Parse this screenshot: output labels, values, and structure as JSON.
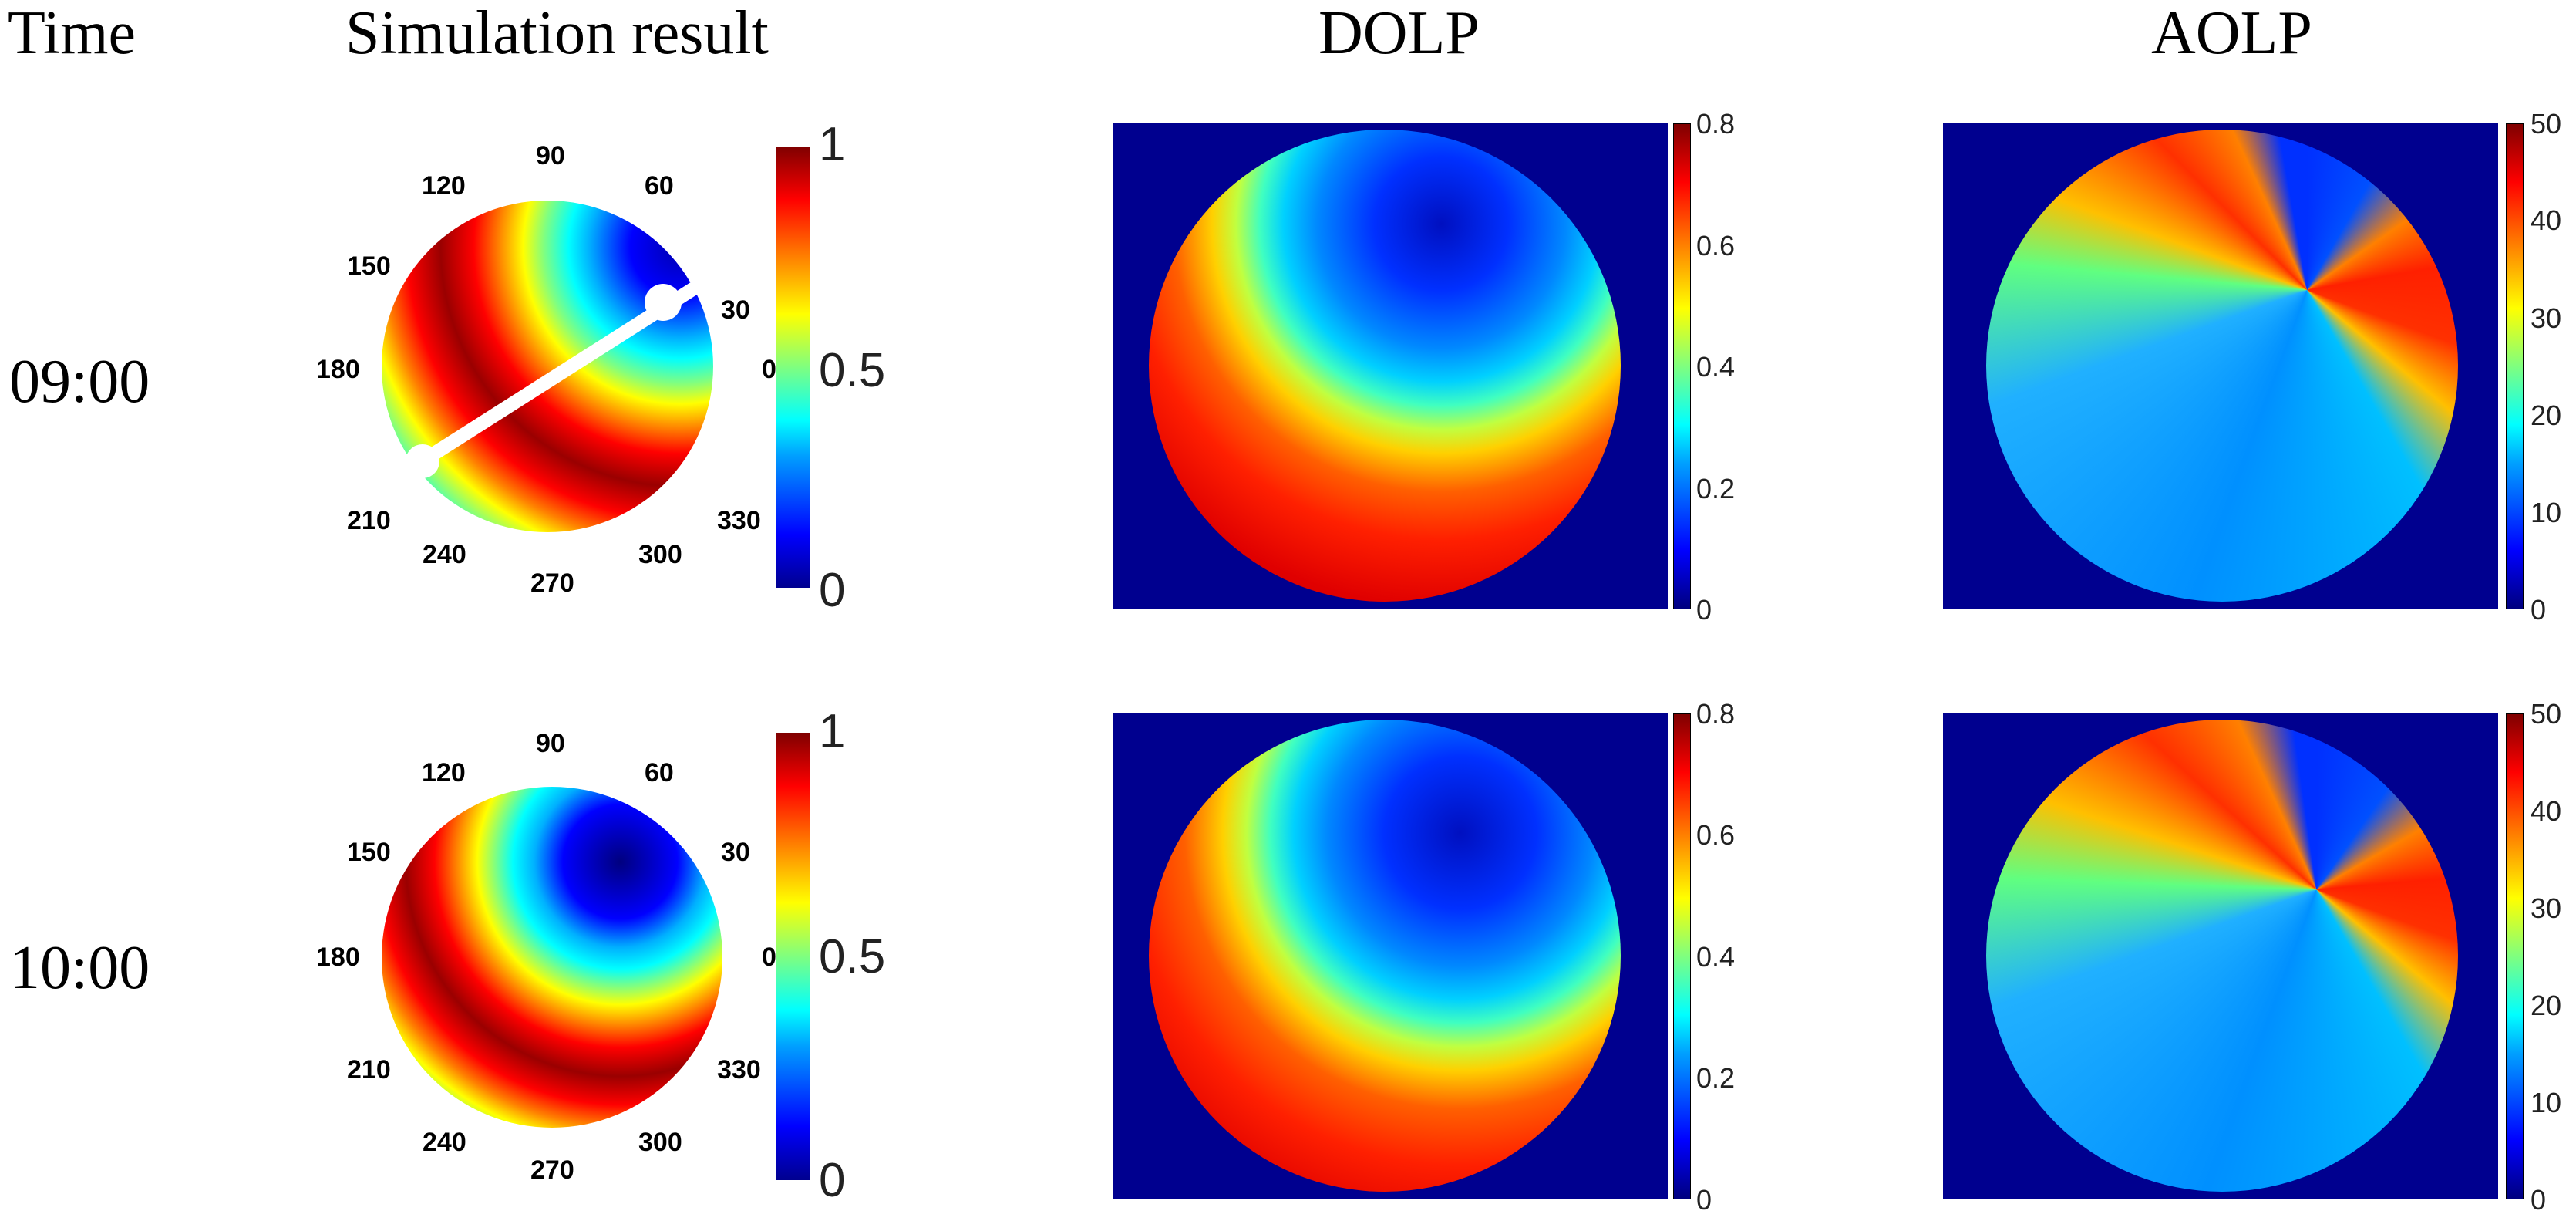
{
  "headers": {
    "time": "Time",
    "simulation": "Simulation result",
    "dolp": "DOLP",
    "aolp": "AOLP"
  },
  "rows": [
    {
      "time": "09:00"
    },
    {
      "time": "10:00"
    }
  ],
  "simulation": {
    "angle_labels": [
      "90",
      "60",
      "120",
      "30",
      "150",
      "0",
      "180",
      "210",
      "330",
      "240",
      "300",
      "270"
    ],
    "colorbar_ticks": [
      "1",
      "0.5",
      "0"
    ]
  },
  "dolp_colorbar_ticks": [
    "0.8",
    "0.6",
    "0.4",
    "0.2",
    "0"
  ],
  "aolp_colorbar_ticks": [
    "50",
    "40",
    "30",
    "20",
    "10",
    "0"
  ]
}
